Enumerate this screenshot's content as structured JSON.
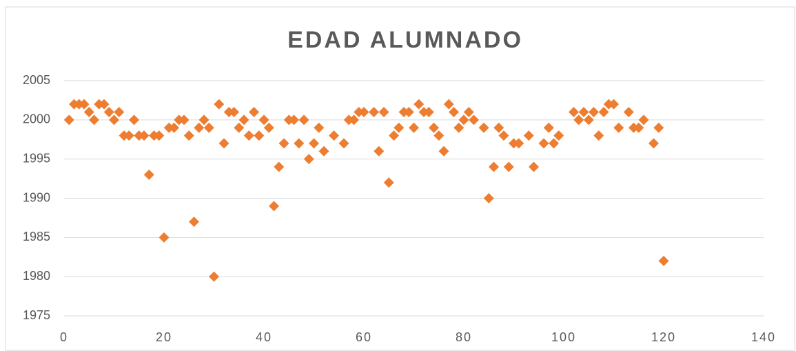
{
  "chart_data": {
    "type": "scatter",
    "title": "EDAD ALUMNADO",
    "color": "#ed7d31",
    "grid": true,
    "xlim": [
      0,
      140
    ],
    "xticks": [
      0,
      20,
      40,
      60,
      80,
      100,
      120,
      140
    ],
    "ylim": [
      1975,
      2005
    ],
    "yticks": [
      1975,
      1980,
      1985,
      1990,
      1995,
      2000,
      2005
    ],
    "x": [
      1,
      2,
      3,
      4,
      5,
      6,
      7,
      8,
      9,
      10,
      11,
      12,
      13,
      14,
      15,
      16,
      17,
      18,
      19,
      20,
      21,
      22,
      23,
      24,
      25,
      26,
      27,
      28,
      29,
      30,
      31,
      32,
      33,
      34,
      35,
      36,
      37,
      38,
      39,
      40,
      41,
      42,
      43,
      44,
      45,
      46,
      47,
      48,
      49,
      50,
      51,
      52,
      54,
      56,
      57,
      58,
      59,
      60,
      62,
      63,
      64,
      65,
      66,
      67,
      68,
      69,
      70,
      71,
      72,
      73,
      74,
      75,
      76,
      77,
      78,
      79,
      80,
      81,
      82,
      84,
      85,
      86,
      87,
      88,
      89,
      90,
      91,
      93,
      94,
      96,
      97,
      98,
      99,
      102,
      103,
      104,
      105,
      106,
      107,
      108,
      109,
      110,
      111,
      113,
      114,
      115,
      116,
      118,
      119,
      120
    ],
    "values": [
      2000,
      2002,
      2002,
      2002,
      2001,
      2000,
      2002,
      2002,
      2001,
      2000,
      2001,
      1998,
      1998,
      2000,
      1998,
      1998,
      1993,
      1998,
      1998,
      1985,
      1999,
      1999,
      2000,
      2000,
      1998,
      1987,
      1999,
      2000,
      1999,
      1980,
      2002,
      1997,
      2001,
      2001,
      1999,
      2000,
      1998,
      2001,
      1998,
      2000,
      1999,
      1989,
      1994,
      1997,
      2000,
      2000,
      1997,
      2000,
      1995,
      1997,
      1999,
      1996,
      1998,
      1997,
      2000,
      2000,
      2001,
      2001,
      2001,
      1996,
      2001,
      1992,
      1998,
      1999,
      2001,
      2001,
      1999,
      2002,
      2001,
      2001,
      1999,
      1998,
      1996,
      2002,
      2001,
      1999,
      2000,
      2001,
      2000,
      1999,
      1990,
      1994,
      1999,
      1998,
      1994,
      1997,
      1997,
      1998,
      1994,
      1997,
      1999,
      1997,
      1998,
      2001,
      2000,
      2001,
      2000,
      2001,
      1998,
      2001,
      2002,
      2002,
      1999,
      2001,
      1999,
      1999,
      2000,
      1997,
      1999,
      1982
    ]
  }
}
